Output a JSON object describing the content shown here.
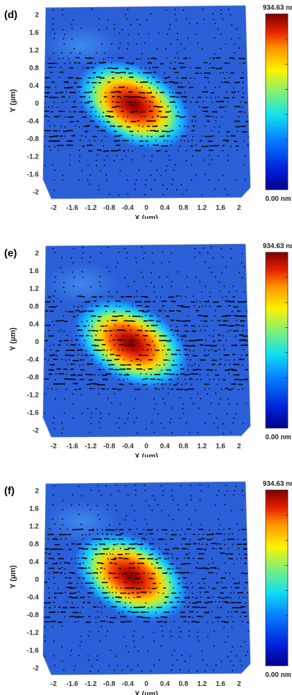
{
  "chart_data": [
    {
      "type": "heatmap",
      "panel_label": "(d)",
      "xlabel": "X (µm)",
      "ylabel": "Y (µm)",
      "xlim": [
        -2.2,
        2.2
      ],
      "ylim": [
        -2.1,
        2.2
      ],
      "x_ticks": [
        "-2",
        "-1.6",
        "-1.2",
        "-0.8",
        "-0.4",
        "0",
        "0.4",
        "0.8",
        "1.2",
        "1.6",
        "2"
      ],
      "y_ticks": [
        "2",
        "1.6",
        "1.2",
        "0.8",
        "0.4",
        "0",
        "-0.4",
        "-0.8",
        "-1.2",
        "-1.6",
        "-2"
      ],
      "colorbar": {
        "max_label": "934.63 nm",
        "min_label": "0.00 nm",
        "max": 934.63,
        "min": 0.0
      },
      "peak": {
        "x": -0.4,
        "y": 0.05,
        "value": 934.63
      },
      "grid": false
    },
    {
      "type": "heatmap",
      "panel_label": "(e)",
      "xlabel": "X (µm)",
      "ylabel": "Y (µm)",
      "xlim": [
        -2.2,
        2.2
      ],
      "ylim": [
        -2.1,
        2.2
      ],
      "x_ticks": [
        "-2",
        "-1.6",
        "-1.2",
        "-0.8",
        "-0.4",
        "0",
        "0.4",
        "0.8",
        "1.2",
        "1.6",
        "2"
      ],
      "y_ticks": [
        "2",
        "1.6",
        "1.2",
        "0.8",
        "0.4",
        "0",
        "-0.4",
        "-0.8",
        "-1.2",
        "-1.6",
        "-2"
      ],
      "colorbar": {
        "max_label": "934.63 nm",
        "min_label": "0.00 nm",
        "max": 934.63,
        "min": 0.0
      },
      "peak": {
        "x": -0.45,
        "y": 0.05,
        "value": 934.63
      },
      "grid": false
    },
    {
      "type": "heatmap",
      "panel_label": "(f)",
      "xlabel": "X (µm)",
      "ylabel": "Y (µm)",
      "xlim": [
        -2.2,
        2.2
      ],
      "ylim": [
        -2.1,
        2.2
      ],
      "x_ticks": [
        "-2",
        "-1.6",
        "-1.2",
        "-0.8",
        "-0.4",
        "0",
        "0.4",
        "0.8",
        "1.2",
        "1.6",
        "2"
      ],
      "y_ticks": [
        "2",
        "1.6",
        "1.2",
        "0.8",
        "0.4",
        "0",
        "-0.4",
        "-0.8",
        "-1.2",
        "-1.6",
        "-2"
      ],
      "colorbar": {
        "max_label": "934.63 nm",
        "min_label": "0.00 nm",
        "max": 934.63,
        "min": 0.0
      },
      "peak": {
        "x": -0.45,
        "y": 0.15,
        "value": 934.63
      },
      "grid": false
    }
  ],
  "colors": {
    "background_blue": "#2a5fd8",
    "axis_text": "#333333",
    "marker": "#000000"
  }
}
